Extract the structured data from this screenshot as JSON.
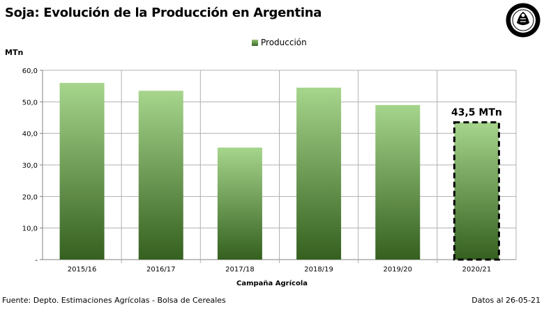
{
  "title": "Soja: Evolución de la Producción en Argentina",
  "unit_label": "MTn",
  "source": "Fuente: Depto. Estimaciones Agrícolas - Bolsa de Cereales",
  "date": "Datos al 26-05-21",
  "colors": {
    "bar_top": "#a6d58c",
    "bar_bottom": "#35601f",
    "grid": "#b0b0b0",
    "axis": "#808080"
  },
  "chart_data": {
    "type": "bar",
    "title": "Soja: Evolución de la Producción en Argentina",
    "xlabel": "Campaña Agrícola",
    "ylabel": "MTn",
    "categories": [
      "2015/16",
      "2016/17",
      "2017/18",
      "2018/19",
      "2019/20",
      "2020/21"
    ],
    "series": [
      {
        "name": "Producción",
        "values": [
          56.0,
          53.5,
          35.5,
          54.5,
          49.0,
          43.5
        ]
      }
    ],
    "ylim": [
      0,
      60
    ],
    "yticks": [
      "-",
      "10,0",
      "20,0",
      "30,0",
      "40,0",
      "50,0",
      "60,0"
    ],
    "grid": true,
    "legend_position": "top-center",
    "highlight": {
      "category": "2020/21",
      "label": "43,5 MTn",
      "style": "dashed-border"
    }
  }
}
